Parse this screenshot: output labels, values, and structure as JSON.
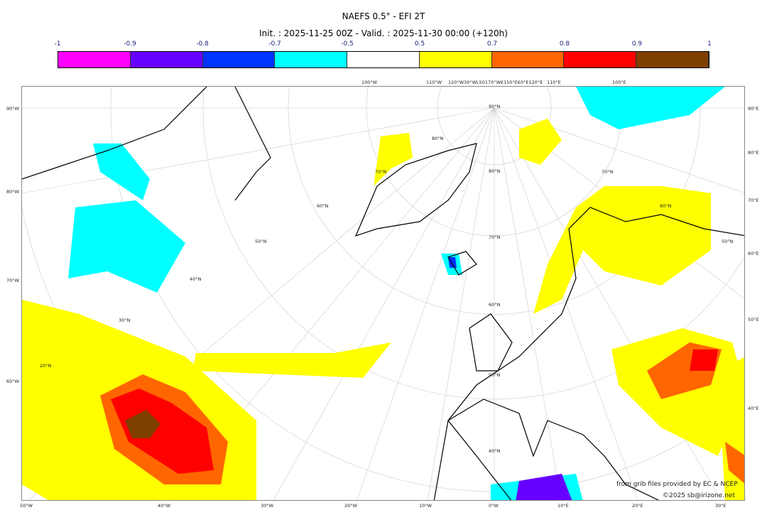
{
  "title": "NAEFS 0.5° - EFI 2T",
  "subtitle": "Init. : 2025-11-25 00Z - Valid. : 2025-11-30 00:00 (+120h)",
  "colorbar": {
    "ticks": [
      "-1",
      "-0.9",
      "-0.8",
      "-0.7",
      "-0.5",
      "0.5",
      "0.7",
      "0.8",
      "0.9",
      "1"
    ],
    "colors": [
      "#ff00ff",
      "#6600ff",
      "#0033ff",
      "#00ffff",
      "#ffffff",
      "#ffff00",
      "#ff6600",
      "#ff0000",
      "#7f3f00"
    ]
  },
  "axes": {
    "left": [
      "90°W",
      "80°W",
      "70°W",
      "60°W"
    ],
    "bottom": [
      "50°W",
      "40°W",
      "30°W",
      "20°W",
      "10°W",
      "0°W",
      "10°E",
      "20°E",
      "30°E"
    ],
    "right": [
      "90°E",
      "80°E",
      "70°E",
      "60°E",
      "50°E",
      "40°E"
    ],
    "top": [
      "100°W",
      "110°W",
      "120°W30°WL50170°W€150°E€0°E120°E",
      "110°E",
      "100°E"
    ],
    "inner": [
      "90°N",
      "80°N",
      "70°N",
      "60°N",
      "50°N",
      "40°N",
      "80°N",
      "70°N",
      "60°N",
      "50°N",
      "40°N",
      "30°N",
      "20°N",
      "70°N",
      "60°N",
      "50°N"
    ]
  },
  "credits": {
    "line1": "from grib files provided by EC & NCEP",
    "line2": "©2025 sb@irizone.net"
  }
}
